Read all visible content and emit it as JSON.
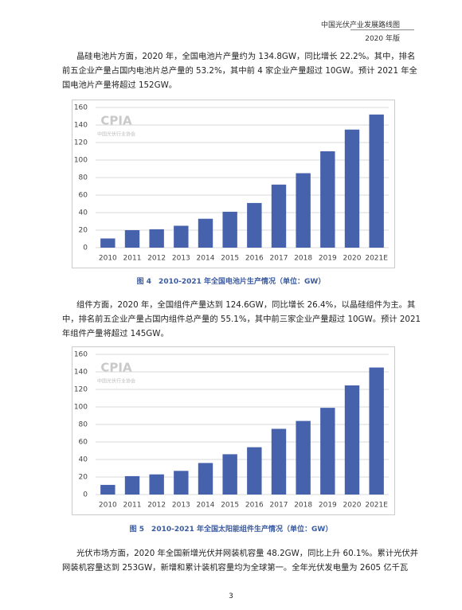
{
  "header": {
    "title": "中国光伏产业发展路线图",
    "edition": "2020 年版"
  },
  "paragraphs": [
    [
      "晶硅电池片方面，2020 年，全国电池片产量约为 134.8GW，同比增长 22.2%。其中，排名",
      "前五企业产量占国内电池片总产量的 53.2%，其中前 4 家企业产量超过 10GW。预计 2021 年全",
      "国电池片产量将超过 152GW。"
    ],
    [
      "组件方面，2020 年，全国组件产量达到 124.6GW，同比增长 26.4%，以晶硅组件为主。其",
      "中，排名前五企业产量占国内组件总产量的 55.1%，其中前三家企业产量超过 10GW。预计 2021",
      "年组件产量将超过 145GW。"
    ],
    [
      "光伏市场方面，2020 年全国新增光伏并网装机容量 48.2GW，同比上升 60.1%。累计光伏并",
      "网装机容量达到 253GW，新增和累计装机容量均为全球第一。全年光伏发电量为 2605 亿千瓦"
    ]
  ],
  "chart_data": [
    {
      "type": "bar",
      "caption": "图 4　2010-2021 年全国电池片生产情况（单位：GW）",
      "watermark": {
        "logo": "CPIA",
        "text": "中国光伏行业协会"
      },
      "categories": [
        "2010",
        "2011",
        "2012",
        "2013",
        "2014",
        "2015",
        "2016",
        "2017",
        "2018",
        "2019",
        "2020",
        "2021E"
      ],
      "values": [
        10.5,
        20,
        21,
        25,
        33,
        41,
        51,
        72,
        85,
        110,
        134.8,
        152
      ],
      "color": "#4762ad",
      "ylim": [
        0,
        160
      ],
      "yticks": [
        0,
        20,
        40,
        60,
        80,
        100,
        120,
        140,
        160
      ],
      "grid": true
    },
    {
      "type": "bar",
      "caption": "图 5　2010-2021 年全国太阳能组件生产情况（单位：GW）",
      "watermark": {
        "logo": "CPIA",
        "text": "中国光伏行业协会"
      },
      "categories": [
        "2010",
        "2011",
        "2012",
        "2013",
        "2014",
        "2015",
        "2016",
        "2017",
        "2018",
        "2019",
        "2020",
        "2021E"
      ],
      "values": [
        11,
        21,
        23,
        27,
        36,
        46,
        54,
        75,
        84,
        99,
        124.6,
        145
      ],
      "color": "#4762ad",
      "ylim": [
        0,
        160
      ],
      "yticks": [
        0,
        20,
        40,
        60,
        80,
        100,
        120,
        140,
        160
      ],
      "grid": true
    }
  ],
  "page_number": "3"
}
